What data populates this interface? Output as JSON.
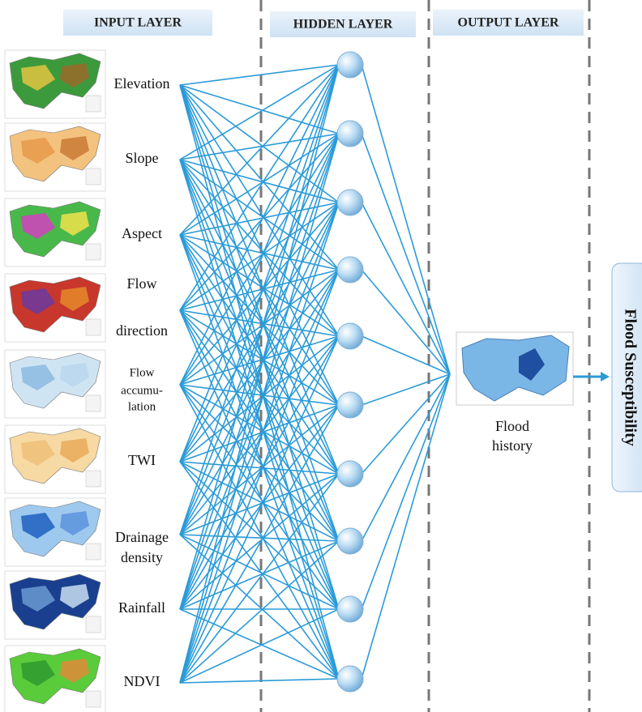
{
  "layers": {
    "input": "INPUT LAYER",
    "hidden": "HIDDEN LAYER",
    "output": "OUTPUT LAYER"
  },
  "inputs": [
    {
      "lines": [
        "Elevation"
      ]
    },
    {
      "lines": [
        "Slope"
      ]
    },
    {
      "lines": [
        "Aspect"
      ]
    },
    {
      "lines": [
        "Flow",
        "direction"
      ]
    },
    {
      "lines": [
        "Flow",
        "accumu-",
        "lation"
      ]
    },
    {
      "lines": [
        "TWI"
      ]
    },
    {
      "lines": [
        "Drainage",
        "density"
      ]
    },
    {
      "lines": [
        "Rainfall"
      ]
    },
    {
      "lines": [
        "NDVI"
      ]
    }
  ],
  "output": {
    "lines": [
      "Flood",
      "history"
    ]
  },
  "result": "Flood Susceptibility"
}
